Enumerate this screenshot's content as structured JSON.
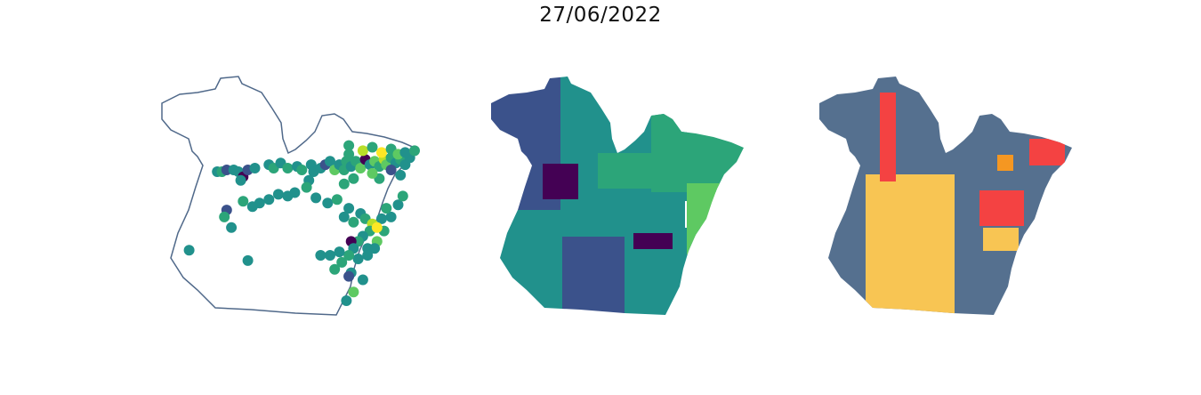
{
  "title": "27/06/2022",
  "colors": {
    "outline": "#50698a",
    "viridis": [
      "#440154",
      "#3b528b",
      "#21918c",
      "#2ca579",
      "#5ec962",
      "#b8de29",
      "#fde725"
    ],
    "map3_base": "#55708f",
    "map3_yellow": "#f8c553",
    "map3_red": "#f44242",
    "map3_orange": "#f59722"
  },
  "panels": [
    {
      "name": "points-map",
      "kind": "points"
    },
    {
      "name": "choropleth-viridis",
      "kind": "choropleth"
    },
    {
      "name": "categorical-map",
      "kind": "categorical"
    }
  ],
  "points": [
    {
      "lon": 0.16,
      "lat": 0.26,
      "v": 2
    },
    {
      "lon": 0.18,
      "lat": 0.26,
      "v": 3
    },
    {
      "lon": 0.2,
      "lat": 0.25,
      "v": 1
    },
    {
      "lon": 0.23,
      "lat": 0.25,
      "v": 2
    },
    {
      "lon": 0.25,
      "lat": 0.26,
      "v": 2
    },
    {
      "lon": 0.27,
      "lat": 0.29,
      "v": 0
    },
    {
      "lon": 0.26,
      "lat": 0.31,
      "v": 2
    },
    {
      "lon": 0.29,
      "lat": 0.25,
      "v": 1
    },
    {
      "lon": 0.32,
      "lat": 0.24,
      "v": 2
    },
    {
      "lon": 0.38,
      "lat": 0.22,
      "v": 2
    },
    {
      "lon": 0.4,
      "lat": 0.24,
      "v": 3
    },
    {
      "lon": 0.43,
      "lat": 0.21,
      "v": 2
    },
    {
      "lon": 0.46,
      "lat": 0.24,
      "v": 3
    },
    {
      "lon": 0.5,
      "lat": 0.23,
      "v": 2
    },
    {
      "lon": 0.52,
      "lat": 0.25,
      "v": 3
    },
    {
      "lon": 0.56,
      "lat": 0.22,
      "v": 2
    },
    {
      "lon": 0.57,
      "lat": 0.26,
      "v": 2
    },
    {
      "lon": 0.6,
      "lat": 0.24,
      "v": 2
    },
    {
      "lon": 0.62,
      "lat": 0.22,
      "v": 1
    },
    {
      "lon": 0.64,
      "lat": 0.2,
      "v": 2
    },
    {
      "lon": 0.66,
      "lat": 0.25,
      "v": 4
    },
    {
      "lon": 0.68,
      "lat": 0.22,
      "v": 2
    },
    {
      "lon": 0.7,
      "lat": 0.25,
      "v": 3
    },
    {
      "lon": 0.71,
      "lat": 0.2,
      "v": 3
    },
    {
      "lon": 0.73,
      "lat": 0.23,
      "v": 2
    },
    {
      "lon": 0.75,
      "lat": 0.2,
      "v": 3
    },
    {
      "lon": 0.77,
      "lat": 0.24,
      "v": 4
    },
    {
      "lon": 0.79,
      "lat": 0.19,
      "v": 0
    },
    {
      "lon": 0.81,
      "lat": 0.22,
      "v": 2
    },
    {
      "lon": 0.83,
      "lat": 0.2,
      "v": 4
    },
    {
      "lon": 0.85,
      "lat": 0.23,
      "v": 3
    },
    {
      "lon": 0.87,
      "lat": 0.19,
      "v": 5
    },
    {
      "lon": 0.88,
      "lat": 0.22,
      "v": 4
    },
    {
      "lon": 0.9,
      "lat": 0.18,
      "v": 3
    },
    {
      "lon": 0.92,
      "lat": 0.21,
      "v": 2
    },
    {
      "lon": 0.94,
      "lat": 0.19,
      "v": 3
    },
    {
      "lon": 0.96,
      "lat": 0.22,
      "v": 2
    },
    {
      "lon": 0.98,
      "lat": 0.18,
      "v": 2
    },
    {
      "lon": 0.78,
      "lat": 0.14,
      "v": 5
    },
    {
      "lon": 0.82,
      "lat": 0.12,
      "v": 3
    },
    {
      "lon": 0.86,
      "lat": 0.15,
      "v": 6
    },
    {
      "lon": 0.9,
      "lat": 0.13,
      "v": 3
    },
    {
      "lon": 0.93,
      "lat": 0.16,
      "v": 4
    },
    {
      "lon": 0.96,
      "lat": 0.15,
      "v": 2
    },
    {
      "lon": 1.0,
      "lat": 0.14,
      "v": 3
    },
    {
      "lon": 0.72,
      "lat": 0.11,
      "v": 3
    },
    {
      "lon": 0.72,
      "lat": 0.16,
      "v": 3
    },
    {
      "lon": 0.9,
      "lat": 0.25,
      "v": 1
    },
    {
      "lon": 0.94,
      "lat": 0.28,
      "v": 2
    },
    {
      "lon": 0.85,
      "lat": 0.3,
      "v": 3
    },
    {
      "lon": 0.82,
      "lat": 0.27,
      "v": 4
    },
    {
      "lon": 0.74,
      "lat": 0.3,
      "v": 3
    },
    {
      "lon": 0.7,
      "lat": 0.33,
      "v": 3
    },
    {
      "lon": 0.55,
      "lat": 0.31,
      "v": 2
    },
    {
      "lon": 0.54,
      "lat": 0.35,
      "v": 3
    },
    {
      "lon": 0.49,
      "lat": 0.38,
      "v": 2
    },
    {
      "lon": 0.46,
      "lat": 0.4,
      "v": 2
    },
    {
      "lon": 0.42,
      "lat": 0.39,
      "v": 2
    },
    {
      "lon": 0.38,
      "lat": 0.42,
      "v": 2
    },
    {
      "lon": 0.34,
      "lat": 0.44,
      "v": 2
    },
    {
      "lon": 0.31,
      "lat": 0.46,
      "v": 2
    },
    {
      "lon": 0.27,
      "lat": 0.43,
      "v": 3
    },
    {
      "lon": 0.2,
      "lat": 0.48,
      "v": 1
    },
    {
      "lon": 0.19,
      "lat": 0.52,
      "v": 3
    },
    {
      "lon": 0.22,
      "lat": 0.58,
      "v": 2
    },
    {
      "lon": 0.58,
      "lat": 0.41,
      "v": 2
    },
    {
      "lon": 0.63,
      "lat": 0.44,
      "v": 2
    },
    {
      "lon": 0.67,
      "lat": 0.42,
      "v": 3
    },
    {
      "lon": 0.72,
      "lat": 0.47,
      "v": 2
    },
    {
      "lon": 0.7,
      "lat": 0.52,
      "v": 2
    },
    {
      "lon": 0.74,
      "lat": 0.55,
      "v": 3
    },
    {
      "lon": 0.77,
      "lat": 0.5,
      "v": 2
    },
    {
      "lon": 0.79,
      "lat": 0.53,
      "v": 3
    },
    {
      "lon": 0.82,
      "lat": 0.56,
      "v": 5
    },
    {
      "lon": 0.81,
      "lat": 0.6,
      "v": 3
    },
    {
      "lon": 0.78,
      "lat": 0.63,
      "v": 2
    },
    {
      "lon": 0.76,
      "lat": 0.66,
      "v": 3
    },
    {
      "lon": 0.73,
      "lat": 0.66,
      "v": 0
    },
    {
      "lon": 0.74,
      "lat": 0.7,
      "v": 2
    },
    {
      "lon": 0.8,
      "lat": 0.7,
      "v": 2
    },
    {
      "lon": 0.84,
      "lat": 0.66,
      "v": 4
    },
    {
      "lon": 0.87,
      "lat": 0.6,
      "v": 3
    },
    {
      "lon": 0.9,
      "lat": 0.52,
      "v": 2
    },
    {
      "lon": 0.93,
      "lat": 0.45,
      "v": 2
    },
    {
      "lon": 0.95,
      "lat": 0.4,
      "v": 3
    },
    {
      "lon": 0.88,
      "lat": 0.47,
      "v": 3
    },
    {
      "lon": 0.86,
      "lat": 0.53,
      "v": 2
    },
    {
      "lon": 0.84,
      "lat": 0.58,
      "v": 6
    },
    {
      "lon": 0.83,
      "lat": 0.7,
      "v": 2
    },
    {
      "lon": 0.8,
      "lat": 0.74,
      "v": 2
    },
    {
      "lon": 0.76,
      "lat": 0.76,
      "v": 2
    },
    {
      "lon": 0.72,
      "lat": 0.74,
      "v": 3
    },
    {
      "lon": 0.68,
      "lat": 0.72,
      "v": 2
    },
    {
      "lon": 0.64,
      "lat": 0.74,
      "v": 2
    },
    {
      "lon": 0.6,
      "lat": 0.74,
      "v": 2
    },
    {
      "lon": 0.69,
      "lat": 0.78,
      "v": 3
    },
    {
      "lon": 0.66,
      "lat": 0.82,
      "v": 3
    },
    {
      "lon": 0.73,
      "lat": 0.84,
      "v": 2
    },
    {
      "lon": 0.72,
      "lat": 0.86,
      "v": 1
    },
    {
      "lon": 0.78,
      "lat": 0.88,
      "v": 2
    },
    {
      "lon": 0.74,
      "lat": 0.95,
      "v": 4
    },
    {
      "lon": 0.71,
      "lat": 1.0,
      "v": 2
    },
    {
      "lon": 0.29,
      "lat": 0.77,
      "v": 2
    },
    {
      "lon": 0.04,
      "lat": 0.71,
      "v": 2
    }
  ],
  "choropleth": [
    {
      "id": "w",
      "ci": 1
    },
    {
      "id": "nw",
      "ci": 2
    },
    {
      "id": "n",
      "ci": 2
    },
    {
      "id": "c",
      "ci": 2
    },
    {
      "id": "sw",
      "ci": 2
    },
    {
      "id": "s",
      "ci": 1
    },
    {
      "id": "se",
      "ci": 2
    },
    {
      "id": "ne",
      "ci": 3
    },
    {
      "id": "e",
      "ci": 4
    },
    {
      "id": "m1",
      "ci": 0
    },
    {
      "id": "m2",
      "ci": 0
    },
    {
      "id": "m3",
      "ci": 3
    }
  ],
  "categorical": [
    {
      "id": "base",
      "cat": "base"
    },
    {
      "id": "y1",
      "cat": "yellow"
    },
    {
      "id": "y2",
      "cat": "yellow"
    },
    {
      "id": "r1",
      "cat": "red"
    },
    {
      "id": "r2",
      "cat": "red"
    },
    {
      "id": "r3",
      "cat": "red"
    },
    {
      "id": "o1",
      "cat": "orange"
    }
  ]
}
